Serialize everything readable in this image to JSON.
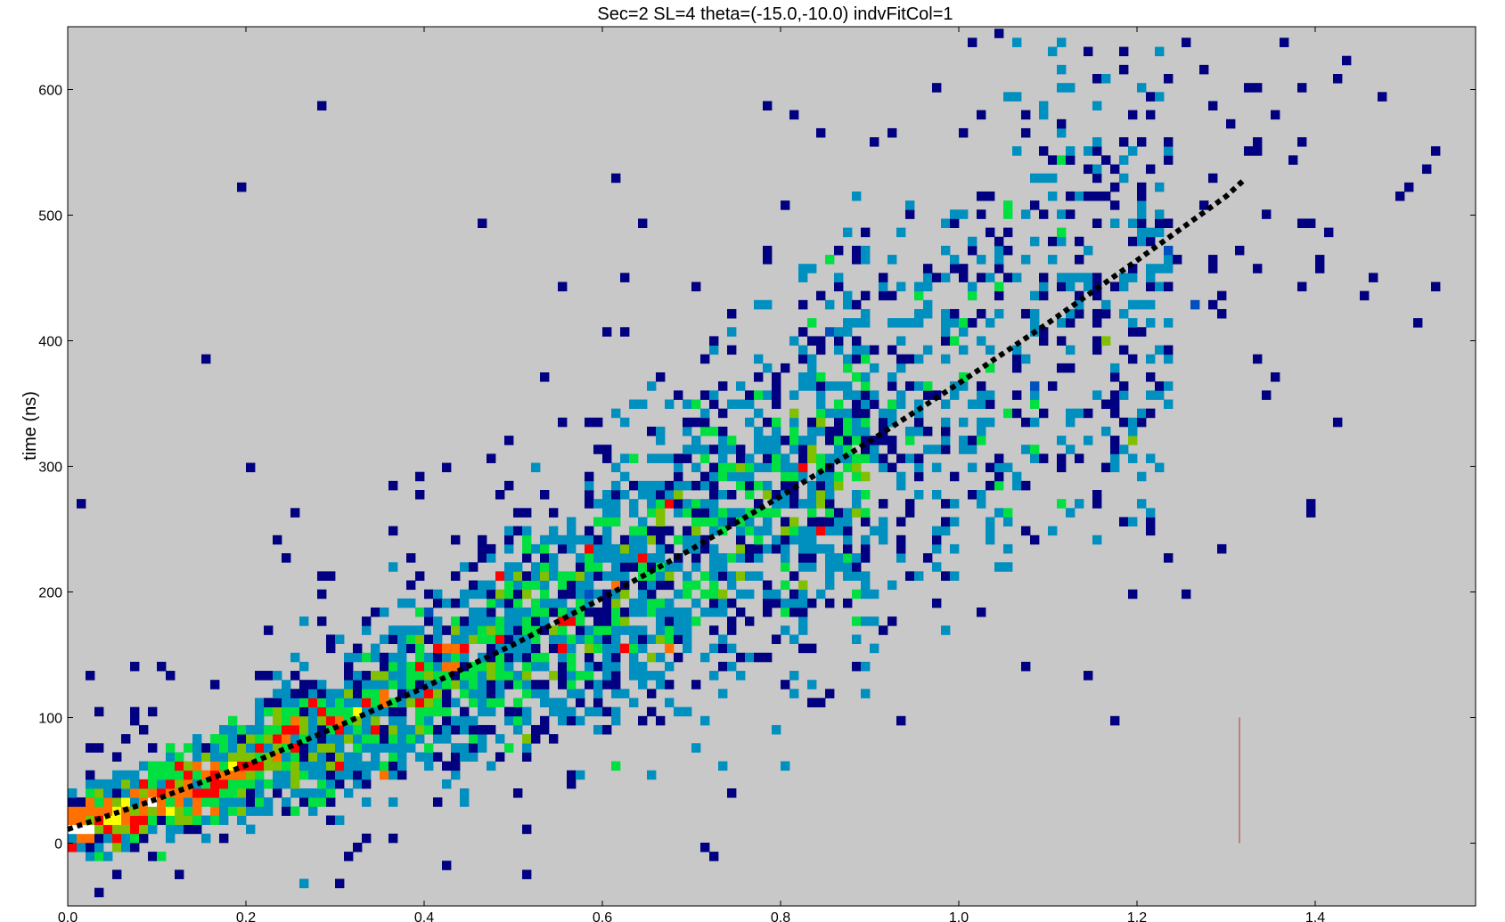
{
  "chart_data": {
    "type": "heatmap",
    "title": "Sec=2 SL=4 theta=(-15.0,-10.0) indvFitCol=1",
    "xlabel": "",
    "ylabel": "time (ns)",
    "xlim": [
      0.0,
      1.58
    ],
    "ylim": [
      -50,
      650
    ],
    "x_ticks": [
      "0.0",
      "0.2",
      "0.4",
      "0.6",
      "0.8",
      "1.0",
      "1.2",
      "1.4"
    ],
    "y_ticks": [
      "0",
      "100",
      "200",
      "300",
      "400",
      "500",
      "600"
    ],
    "background_color": "#c8c8c8",
    "colormap": [
      "#000080",
      "#0050c0",
      "#0090c0",
      "#00e040",
      "#80c000",
      "#ff0000",
      "#ff7000",
      "#ffff00",
      "#ffffff"
    ],
    "ridge": {
      "description_x": [
        0.0,
        0.1,
        0.2,
        0.3,
        0.4,
        0.5,
        0.6,
        0.7,
        0.8,
        0.9,
        1.0,
        1.1,
        1.2
      ],
      "description_y": [
        10,
        32,
        56,
        84,
        112,
        145,
        185,
        230,
        282,
        335,
        350,
        420,
        450
      ]
    },
    "fit_curve": {
      "style": "dotted",
      "color": "#000000",
      "x": [
        0.0,
        0.1,
        0.2,
        0.3,
        0.4,
        0.5,
        0.6,
        0.7,
        0.8,
        0.9,
        1.0,
        1.1,
        1.2,
        1.3,
        1.32
      ],
      "y": [
        11,
        35,
        62,
        92,
        124,
        158,
        195,
        234,
        276,
        320,
        366,
        414,
        464,
        515,
        528
      ]
    },
    "marker_line": {
      "x": 1.315,
      "y0": 0,
      "y1": 100,
      "color": "#c03030"
    }
  }
}
